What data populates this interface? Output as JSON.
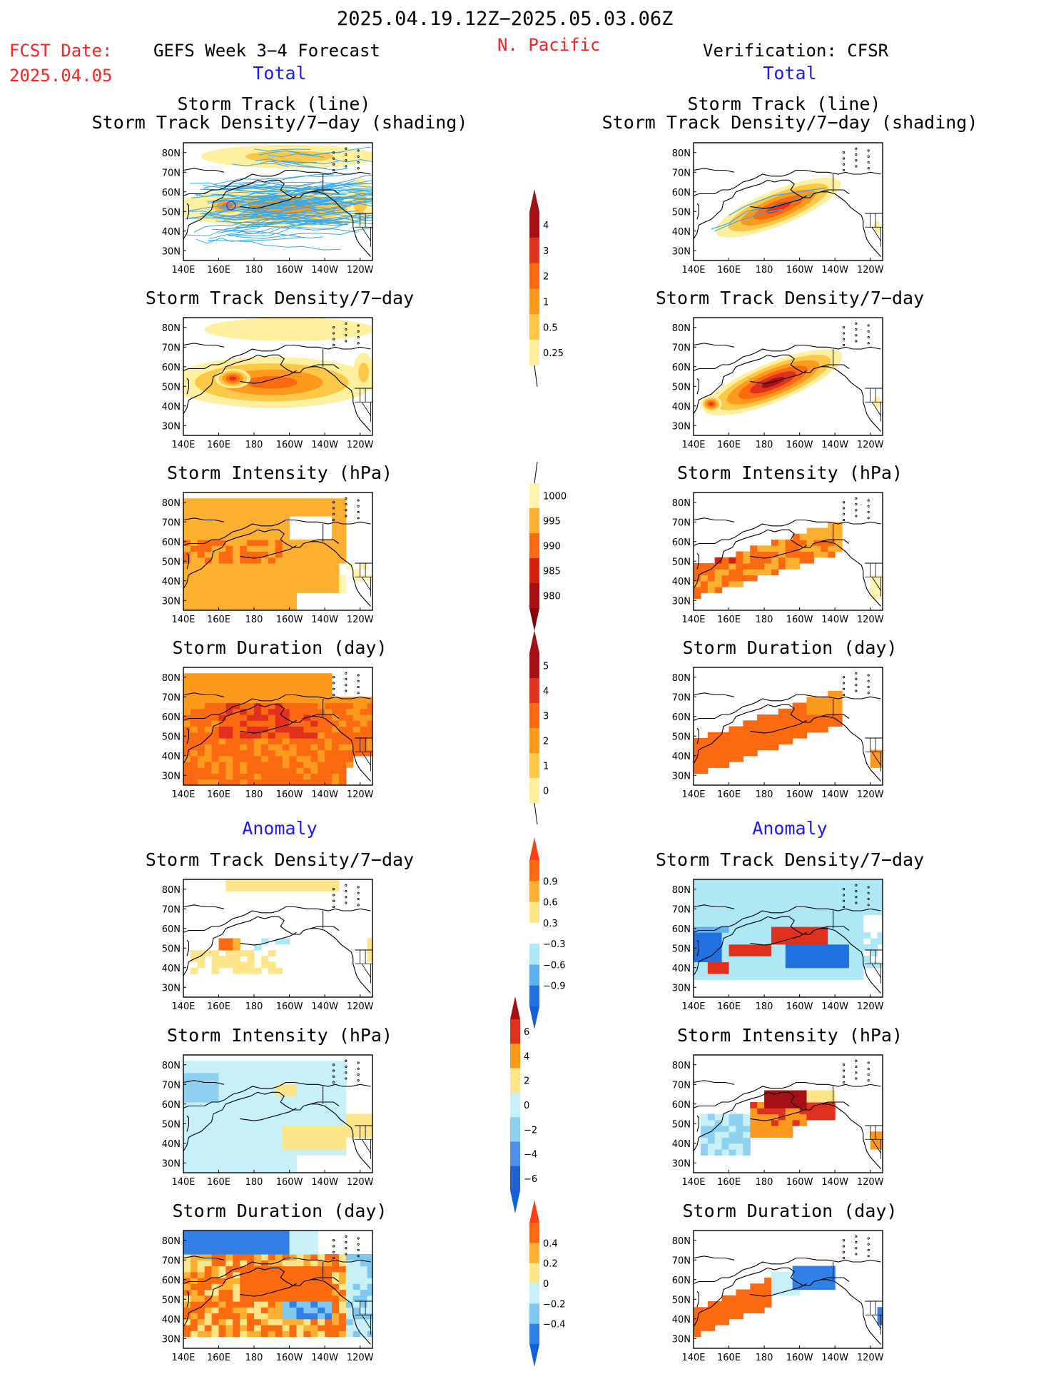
{
  "header": {
    "date_range": "2025.04.19.12Z−2025.05.03.06Z",
    "region": "N. Pacific",
    "fcst_label": "FCST Date:",
    "fcst_date": "2025.04.05",
    "forecast_title": "GEFS Week 3−4 Forecast",
    "verification_title": "Verification: CFSR",
    "total_label": "Total",
    "anomaly_label": "Anomaly"
  },
  "panel_titles": {
    "track_line": "Storm Track (line)",
    "track_shading": "Storm Track Density/7−day (shading)",
    "density": "Storm Track Density/7−day",
    "intensity": "Storm Intensity (hPa)",
    "duration": "Storm Duration (day)"
  },
  "axes": {
    "lon_ticks": [
      "140E",
      "160E",
      "180",
      "160W",
      "140W",
      "120W"
    ],
    "lat_ticks": [
      "80N",
      "70N",
      "60N",
      "50N",
      "40N",
      "30N"
    ]
  },
  "colorbars": {
    "density_total": {
      "labels": [
        "4",
        "3",
        "2",
        "1",
        "0.5",
        "0.25"
      ],
      "colors": [
        "#a50f15",
        "#e0301e",
        "#fb6a10",
        "#fd9a1e",
        "#fdc848",
        "#fff0a0"
      ],
      "top_arrow": "#a50f15"
    },
    "intensity_total": {
      "labels": [
        "1000",
        "995",
        "990",
        "985",
        "980"
      ],
      "colors": [
        "#fff3b0",
        "#fdb030",
        "#fb6a10",
        "#d42010",
        "#a50f15"
      ],
      "bottom_arrow": "#8b0000"
    },
    "duration_total": {
      "labels": [
        "5",
        "4",
        "3",
        "2",
        "1",
        "0"
      ],
      "colors": [
        "#a50f15",
        "#e0301e",
        "#fb6a10",
        "#fd9a1e",
        "#fdc848",
        "#fff0a0"
      ],
      "top_arrow": "#a50f15"
    },
    "density_anom": {
      "labels": [
        "0.9",
        "0.6",
        "0.3",
        "−0.3",
        "−0.6",
        "−0.9"
      ],
      "colors": [
        "#fb6a10",
        "#fdb030",
        "#fde68a",
        "#ffffff",
        "#aee8f5",
        "#60b0f0",
        "#2070e0"
      ],
      "top_arrow": "#ff4010",
      "bottom_arrow": "#1060e0"
    },
    "intensity_anom": {
      "labels": [
        "6",
        "4",
        "2",
        "0",
        "−2",
        "−4",
        "−6"
      ],
      "colors": [
        "#e0301e",
        "#fd9a1e",
        "#fde68a",
        "#c8f0f8",
        "#90d0f0",
        "#5090e8",
        "#2060d0"
      ],
      "top_arrow": "#a50f15",
      "bottom_arrow": "#1060e0"
    },
    "duration_anom": {
      "labels": [
        "0.4",
        "0.2",
        "0",
        "−0.2",
        "−0.4"
      ],
      "colors": [
        "#fb6a10",
        "#fdb030",
        "#fde68a",
        "#c8f0f8",
        "#80c8f0",
        "#3080e8"
      ],
      "top_arrow": "#ff4010",
      "bottom_arrow": "#1060e0"
    }
  },
  "colors": {
    "red_text": "#ff2020",
    "blue_text": "#1a1aff",
    "track_line": "#3aa8e8"
  }
}
